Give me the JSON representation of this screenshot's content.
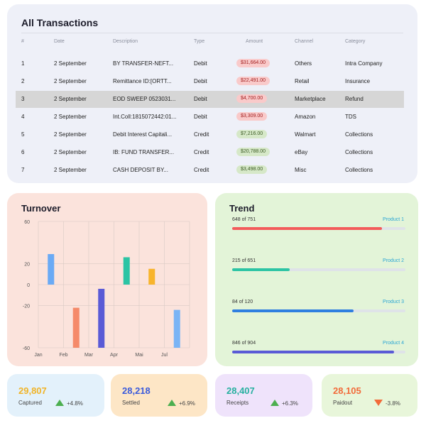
{
  "transactions": {
    "title": "All Transactions",
    "columns": [
      "#",
      "Date",
      "Description",
      "Type",
      "Amount",
      "Channel",
      "Category"
    ],
    "rows": [
      {
        "num": "1",
        "date": "2 September",
        "desc": "BY TRANSFER-NEFT...",
        "type": "Debit",
        "amount": "$31,664.00",
        "channel": "Others",
        "category": "Intra Company"
      },
      {
        "num": "2",
        "date": "2 September",
        "desc": "Remittance ID:[ORTT...",
        "type": "Debit",
        "amount": "$22,491.00",
        "channel": "Retail",
        "category": "Insurance"
      },
      {
        "num": "3",
        "date": "2 September",
        "desc": "EOD SWEEP 0523031...",
        "type": "Debit",
        "amount": "$4,700.00",
        "channel": "Marketplace",
        "category": "Refund"
      },
      {
        "num": "4",
        "date": "2 September",
        "desc": "Int.Coll:1815072442:01...",
        "type": "Debit",
        "amount": "$3,309.00",
        "channel": "Amazon",
        "category": "TDS"
      },
      {
        "num": "5",
        "date": "2 September",
        "desc": "Debit Interest Capitali...",
        "type": "Credit",
        "amount": "$7,216.00",
        "channel": "Walmart",
        "category": "Collections"
      },
      {
        "num": "6",
        "date": "2 September",
        "desc": "IB: FUND TRANSFER...",
        "type": "Credit",
        "amount": "$20,788.00",
        "channel": "eBay",
        "category": "Collections"
      },
      {
        "num": "7",
        "date": "2 September",
        "desc": "CASH DEPOSIT BY...",
        "type": "Credit",
        "amount": "$3,498.00",
        "channel": "Misc",
        "category": "Collections"
      }
    ]
  },
  "turnover": {
    "title": "Turnover"
  },
  "chart_data": {
    "type": "bar",
    "title": "Turnover",
    "xlabel": "",
    "ylabel": "",
    "ylim": [
      -60,
      60
    ],
    "yticks": [
      "60",
      "20",
      "0",
      "-20",
      "-60"
    ],
    "ytick_values": [
      60,
      20,
      0,
      -20,
      -60
    ],
    "categories": [
      "Jan",
      "Feb",
      "Mar",
      "Apr",
      "Mai",
      "Jul"
    ],
    "bars": [
      {
        "x": 0.5,
        "value": 29,
        "color": "#6aaaf5"
      },
      {
        "x": 1.5,
        "value": -22,
        "color": "#f58a6a"
      },
      {
        "x": 2.5,
        "value": -4,
        "color": "#5a5ad6"
      },
      {
        "x": 3.5,
        "value": 26,
        "color": "#2cc4a4"
      },
      {
        "x": 4.5,
        "value": 15,
        "color": "#f8b42c"
      },
      {
        "x": 5.5,
        "value": -24,
        "color": "#7ab4f5"
      }
    ],
    "grid": true
  },
  "trend": {
    "title": "Trend",
    "items": [
      {
        "label": "648 of 751",
        "product": "Product 1",
        "value": 648,
        "max": 751,
        "color": "#f35b5b"
      },
      {
        "label": "215 of 651",
        "product": "Product 2",
        "value": 215,
        "max": 651,
        "color": "#2cc4a4"
      },
      {
        "label": "84 of 120",
        "product": "Product 3",
        "value": 84,
        "max": 120,
        "color": "#2f7fe0"
      },
      {
        "label": "846 of 904",
        "product": "Product 4",
        "value": 846,
        "max": 904,
        "color": "#5a5ad6"
      }
    ]
  },
  "stats": [
    {
      "value": "29,807",
      "label": "Captured",
      "change": "+4.8%",
      "dir": "up",
      "bg": "#e3f1fb",
      "color": "#f0b429"
    },
    {
      "value": "28,218",
      "label": "Settled",
      "change": "+6.9%",
      "dir": "up",
      "bg": "#fde6c6",
      "color": "#3b5bdb"
    },
    {
      "value": "28,407",
      "label": "Receipts",
      "change": "+6.3%",
      "dir": "up",
      "bg": "#efe3fb",
      "color": "#27b0a0"
    },
    {
      "value": "28,105",
      "label": "Paidout",
      "change": "-3.8%",
      "dir": "down",
      "bg": "#e8f6da",
      "color": "#f26b3a"
    }
  ]
}
